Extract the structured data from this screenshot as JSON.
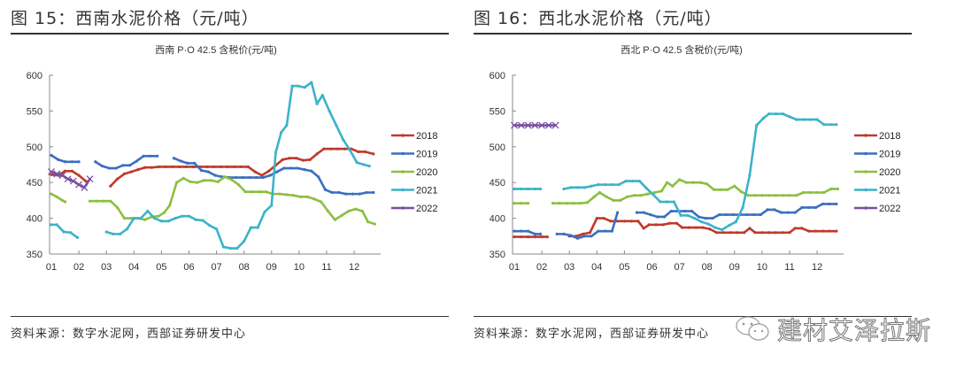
{
  "watermark": {
    "text": "建材艾泽拉斯",
    "icon": "wechat-icon"
  },
  "chart_data": [
    {
      "type": "line",
      "figure_title": "图 15：西南水泥价格（元/吨）",
      "title": "西南 P·O 42.5 含税价(元/吨)",
      "source": "资料来源：数字水泥网，西部证券研发中心",
      "xlabel": "",
      "ylabel": "",
      "ylim": [
        350,
        600
      ],
      "yticks": [
        350,
        400,
        450,
        500,
        550,
        600
      ],
      "xticks": [
        "01",
        "02",
        "03",
        "04",
        "05",
        "06",
        "07",
        "08",
        "09",
        "10",
        "11",
        "12"
      ],
      "xlim": [
        1,
        12.9
      ],
      "grid": false,
      "legend_position": "right",
      "series": [
        {
          "name": "2018",
          "color": "#c0392b",
          "x": [
            1.0,
            1.25,
            1.5,
            1.75,
            2.0,
            2.25,
            2.9,
            3.15,
            3.4,
            3.65,
            3.9,
            4.15,
            4.4,
            4.65,
            4.9,
            5.15,
            5.4,
            5.65,
            5.9,
            6.15,
            6.4,
            6.65,
            6.9,
            7.15,
            7.4,
            7.65,
            7.9,
            8.15,
            8.4,
            8.65,
            8.9,
            9.15,
            9.4,
            9.65,
            9.9,
            10.15,
            10.4,
            10.65,
            10.9,
            11.15,
            11.4,
            11.65,
            11.9,
            12.15,
            12.4,
            12.7
          ],
          "y": [
            461,
            460,
            466,
            466,
            460,
            452,
            null,
            445,
            455,
            462,
            465,
            468,
            471,
            471,
            472,
            472,
            472,
            472,
            472,
            472,
            472,
            472,
            472,
            472,
            472,
            472,
            472,
            472,
            465,
            460,
            466,
            474,
            482,
            484,
            484,
            481,
            482,
            490,
            497,
            497,
            497,
            497,
            497,
            493,
            493,
            490
          ]
        },
        {
          "name": "2019",
          "color": "#3a6fbf",
          "x": [
            1.0,
            1.25,
            1.5,
            1.75,
            2.0,
            2.35,
            2.6,
            2.85,
            3.1,
            3.35,
            3.6,
            3.85,
            4.1,
            4.35,
            4.6,
            4.85,
            5.2,
            5.45,
            5.7,
            5.95,
            6.2,
            6.45,
            6.7,
            6.95,
            7.2,
            7.45,
            7.7,
            7.95,
            8.2,
            8.45,
            8.7,
            8.95,
            9.2,
            9.45,
            9.7,
            9.95,
            10.2,
            10.45,
            10.7,
            10.95,
            11.2,
            11.45,
            11.7,
            11.95,
            12.2,
            12.45,
            12.7
          ],
          "y": [
            488,
            482,
            479,
            479,
            479,
            null,
            479,
            473,
            470,
            470,
            474,
            474,
            480,
            487,
            487,
            487,
            null,
            484,
            480,
            477,
            477,
            467,
            465,
            460,
            458,
            457,
            457,
            457,
            457,
            457,
            457,
            460,
            465,
            470,
            470,
            470,
            468,
            466,
            458,
            440,
            436,
            436,
            434,
            434,
            434,
            436,
            436
          ]
        },
        {
          "name": "2020",
          "color": "#8cbf3f",
          "x": [
            1.0,
            1.2,
            1.4,
            1.5,
            2.15,
            2.4,
            2.65,
            2.9,
            3.15,
            3.4,
            3.65,
            3.9,
            4.15,
            4.4,
            4.65,
            4.9,
            5.1,
            5.3,
            5.55,
            5.8,
            6.05,
            6.3,
            6.55,
            6.8,
            7.05,
            7.3,
            7.55,
            7.8,
            8.05,
            8.3,
            8.55,
            8.8,
            9.05,
            9.3,
            9.55,
            9.8,
            10.05,
            10.3,
            10.55,
            10.8,
            11.05,
            11.3,
            11.55,
            11.8,
            12.05,
            12.3,
            12.5,
            12.75
          ],
          "y": [
            434,
            430,
            425,
            423,
            null,
            424,
            424,
            424,
            424,
            415,
            400,
            400,
            400,
            398,
            402,
            403,
            408,
            418,
            450,
            456,
            451,
            450,
            453,
            453,
            451,
            458,
            454,
            447,
            437,
            437,
            437,
            437,
            434,
            434,
            433,
            432,
            430,
            430,
            427,
            423,
            410,
            398,
            404,
            410,
            413,
            410,
            395,
            392
          ]
        },
        {
          "name": "2021",
          "color": "#3bb3c9",
          "x": [
            1.0,
            1.2,
            1.45,
            1.7,
            1.95,
            2.75,
            3.0,
            3.25,
            3.5,
            3.75,
            4.0,
            4.25,
            4.5,
            4.75,
            5.0,
            5.25,
            5.5,
            5.75,
            6.0,
            6.25,
            6.5,
            6.75,
            7.0,
            7.25,
            7.5,
            7.75,
            8.0,
            8.25,
            8.5,
            8.75,
            9.0,
            9.15,
            9.35,
            9.55,
            9.75,
            9.95,
            10.2,
            10.45,
            10.65,
            10.85,
            11.1,
            11.35,
            11.6,
            11.85,
            12.1,
            12.35,
            12.55
          ],
          "y": [
            391,
            391,
            381,
            380,
            373,
            null,
            381,
            378,
            378,
            385,
            400,
            400,
            410,
            400,
            396,
            396,
            400,
            403,
            403,
            398,
            397,
            390,
            385,
            360,
            358,
            358,
            368,
            387,
            387,
            409,
            418,
            492,
            520,
            530,
            585,
            585,
            583,
            590,
            560,
            572,
            550,
            530,
            510,
            495,
            478,
            475,
            473
          ]
        },
        {
          "name": "2022",
          "color": "#7a4fa3",
          "x": [
            1.0,
            1.2,
            1.4,
            1.6,
            1.8,
            2.0,
            2.2,
            2.4
          ],
          "y": [
            465,
            462,
            460,
            455,
            452,
            447,
            443,
            455
          ]
        }
      ]
    },
    {
      "type": "line",
      "figure_title": "图 16：西北水泥价格（元/吨）",
      "title": "西北 P·O 42.5 含税价(元/吨)",
      "source": "资料来源：数字水泥网，西部证券研发中心",
      "xlabel": "",
      "ylabel": "",
      "ylim": [
        350,
        600
      ],
      "yticks": [
        350,
        400,
        450,
        500,
        550,
        600
      ],
      "xticks": [
        "01",
        "02",
        "03",
        "04",
        "05",
        "06",
        "07",
        "08",
        "09",
        "10",
        "11",
        "12"
      ],
      "xlim": [
        1,
        12.9
      ],
      "grid": false,
      "legend_position": "right",
      "series": [
        {
          "name": "2018",
          "color": "#c0392b",
          "x": [
            1.0,
            1.25,
            1.5,
            1.75,
            2.0,
            2.2,
            2.75,
            3.0,
            3.25,
            3.5,
            3.75,
            4.0,
            4.25,
            4.5,
            4.75,
            5.0,
            5.25,
            5.5,
            5.7,
            5.9,
            6.15,
            6.4,
            6.65,
            6.9,
            7.1,
            7.35,
            7.6,
            7.85,
            8.1,
            8.35,
            8.6,
            8.85,
            9.1,
            9.35,
            9.55,
            9.75,
            10.0,
            10.25,
            10.5,
            10.75,
            11.0,
            11.2,
            11.45,
            11.7,
            11.95,
            12.2,
            12.45,
            12.7
          ],
          "y": [
            374,
            374,
            374,
            374,
            374,
            374,
            null,
            375,
            375,
            378,
            380,
            400,
            400,
            396,
            396,
            396,
            396,
            396,
            386,
            391,
            391,
            391,
            393,
            393,
            387,
            387,
            387,
            387,
            385,
            380,
            380,
            380,
            380,
            380,
            386,
            380,
            380,
            380,
            380,
            380,
            380,
            386,
            386,
            382,
            382,
            382,
            382,
            382
          ]
        },
        {
          "name": "2019",
          "color": "#3a6fbf",
          "x": [
            1.0,
            1.25,
            1.5,
            1.75,
            1.95,
            2.3,
            2.55,
            2.8,
            3.05,
            3.3,
            3.55,
            3.8,
            4.05,
            4.3,
            4.55,
            4.75,
            5.2,
            5.45,
            5.7,
            5.95,
            6.2,
            6.45,
            6.7,
            6.95,
            7.2,
            7.45,
            7.7,
            7.95,
            8.2,
            8.45,
            8.7,
            8.95,
            9.2,
            9.45,
            9.7,
            9.95,
            10.2,
            10.45,
            10.7,
            10.95,
            11.2,
            11.45,
            11.7,
            11.95,
            12.2,
            12.45,
            12.7
          ],
          "y": [
            382,
            382,
            382,
            378,
            378,
            null,
            378,
            378,
            376,
            372,
            375,
            375,
            382,
            382,
            382,
            408,
            null,
            408,
            408,
            405,
            402,
            402,
            410,
            410,
            410,
            410,
            402,
            400,
            400,
            405,
            405,
            405,
            405,
            405,
            405,
            405,
            412,
            412,
            408,
            408,
            408,
            415,
            415,
            415,
            420,
            420,
            420
          ]
        },
        {
          "name": "2020",
          "color": "#8cbf3f",
          "x": [
            1.0,
            1.25,
            1.5,
            2.15,
            2.4,
            2.65,
            2.9,
            3.15,
            3.4,
            3.65,
            3.9,
            4.1,
            4.35,
            4.6,
            4.85,
            5.1,
            5.35,
            5.6,
            5.85,
            6.1,
            6.35,
            6.55,
            6.75,
            7.0,
            7.25,
            7.5,
            7.75,
            8.0,
            8.25,
            8.5,
            8.75,
            9.0,
            9.25,
            9.5,
            9.75,
            10.0,
            10.25,
            10.5,
            10.75,
            11.0,
            11.25,
            11.5,
            11.75,
            12.0,
            12.25,
            12.5,
            12.75
          ],
          "y": [
            421,
            421,
            421,
            null,
            421,
            421,
            421,
            421,
            421,
            422,
            430,
            436,
            430,
            425,
            425,
            430,
            432,
            432,
            434,
            436,
            438,
            450,
            445,
            454,
            450,
            450,
            450,
            448,
            440,
            440,
            440,
            445,
            437,
            432,
            432,
            432,
            432,
            432,
            432,
            432,
            432,
            436,
            436,
            436,
            436,
            441,
            441
          ]
        },
        {
          "name": "2021",
          "color": "#3bb3c9",
          "x": [
            1.0,
            1.25,
            1.5,
            1.75,
            1.95,
            2.55,
            2.8,
            3.05,
            3.3,
            3.55,
            3.8,
            4.05,
            4.3,
            4.55,
            4.8,
            5.05,
            5.3,
            5.55,
            5.8,
            6.05,
            6.3,
            6.55,
            6.8,
            7.05,
            7.3,
            7.55,
            7.8,
            8.05,
            8.3,
            8.55,
            8.8,
            9.05,
            9.3,
            9.55,
            9.8,
            10.05,
            10.25,
            10.5,
            10.75,
            11.0,
            11.25,
            11.5,
            11.75,
            12.0,
            12.25,
            12.5,
            12.7
          ],
          "y": [
            441,
            441,
            441,
            441,
            441,
            null,
            441,
            443,
            443,
            443,
            445,
            447,
            447,
            447,
            447,
            452,
            452,
            452,
            442,
            433,
            423,
            423,
            423,
            404,
            404,
            400,
            395,
            392,
            387,
            384,
            390,
            395,
            415,
            460,
            530,
            540,
            546,
            546,
            546,
            542,
            538,
            538,
            538,
            538,
            531,
            531,
            531
          ]
        },
        {
          "name": "2022",
          "color": "#7a4fa3",
          "x": [
            1.0,
            1.25,
            1.5,
            1.75,
            2.0,
            2.25,
            2.5
          ],
          "y": [
            530,
            530,
            530,
            530,
            530,
            530,
            530
          ]
        }
      ]
    }
  ]
}
